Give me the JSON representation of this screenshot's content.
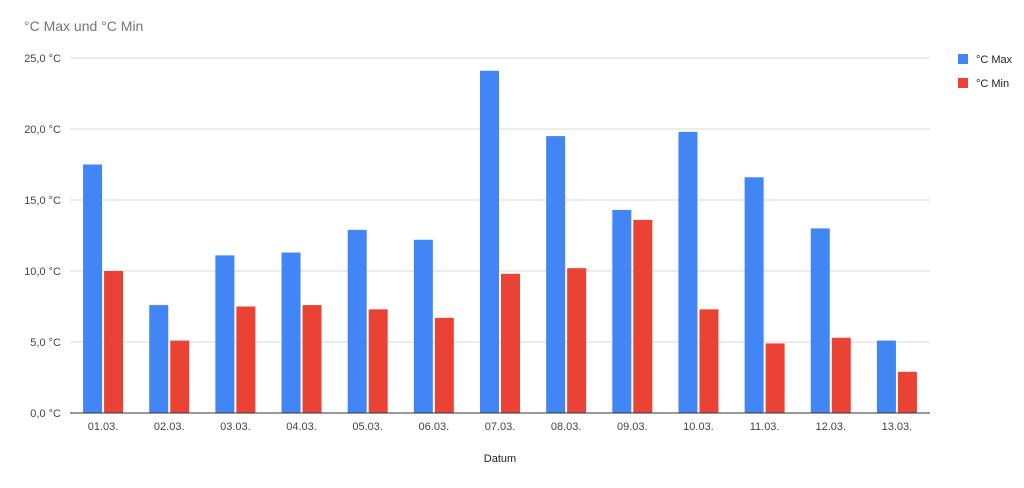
{
  "chart_data": {
    "type": "bar",
    "title": "°C Max und °C Min",
    "xlabel": "Datum",
    "ylabel": "",
    "categories": [
      "01.03.",
      "02.03.",
      "03.03.",
      "04.03.",
      "05.03.",
      "06.03.",
      "07.03.",
      "08.03.",
      "09.03.",
      "10.03.",
      "11.03.",
      "12.03.",
      "13.03."
    ],
    "series": [
      {
        "name": "°C Max",
        "color": "#4285f4",
        "values": [
          17.5,
          7.6,
          11.1,
          11.3,
          12.9,
          12.2,
          24.1,
          19.5,
          14.3,
          19.8,
          16.6,
          13.0,
          5.1
        ]
      },
      {
        "name": "°C Min",
        "color": "#ea4335",
        "values": [
          10.0,
          5.1,
          7.5,
          7.6,
          7.3,
          6.7,
          9.8,
          10.2,
          13.6,
          7.3,
          4.9,
          5.3,
          2.9
        ]
      }
    ],
    "ylim": [
      0,
      25
    ],
    "yticks": [
      0,
      5,
      10,
      15,
      20,
      25
    ],
    "ytick_labels": [
      "0,0 °C",
      "5,0 °C",
      "10,0 °C",
      "15,0 °C",
      "20,0 °C",
      "25,0 °C"
    ],
    "grid": true,
    "legend_position": "right"
  }
}
